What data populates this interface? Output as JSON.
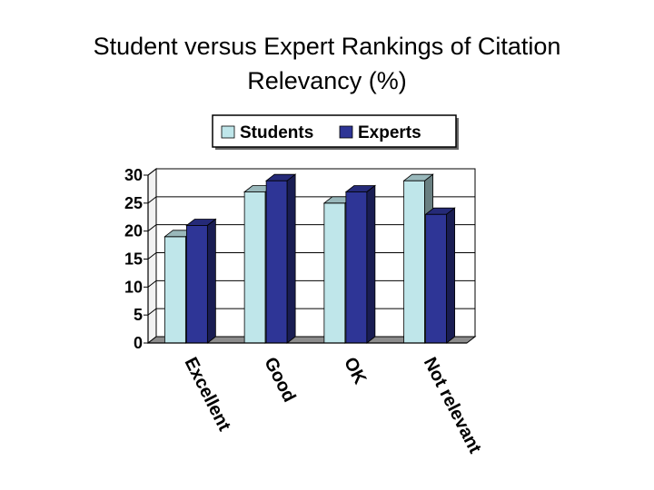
{
  "title": {
    "line1": "Student versus Expert Rankings of Citation",
    "line2": "Relevancy (%)"
  },
  "colors": {
    "students": "#BFE6EA",
    "experts": "#2E3596",
    "wall": "#ffffff",
    "floor": "#8c8c8c",
    "grid": "#000000"
  },
  "chart_data": {
    "type": "bar",
    "title": "Student versus Expert Rankings of Citation Relevancy (%)",
    "xlabel": "",
    "ylabel": "",
    "categories": [
      "Excellent",
      "Good",
      "OK",
      "Not relevant"
    ],
    "series": [
      {
        "name": "Students",
        "values": [
          19,
          27,
          25,
          29
        ]
      },
      {
        "name": "Experts",
        "values": [
          21,
          29,
          27,
          23
        ]
      }
    ],
    "ylim": [
      0,
      30
    ],
    "yticks": [
      0,
      5,
      10,
      15,
      20,
      25,
      30
    ],
    "grid": true,
    "legend": "top",
    "style": "3d-clustered-column"
  }
}
